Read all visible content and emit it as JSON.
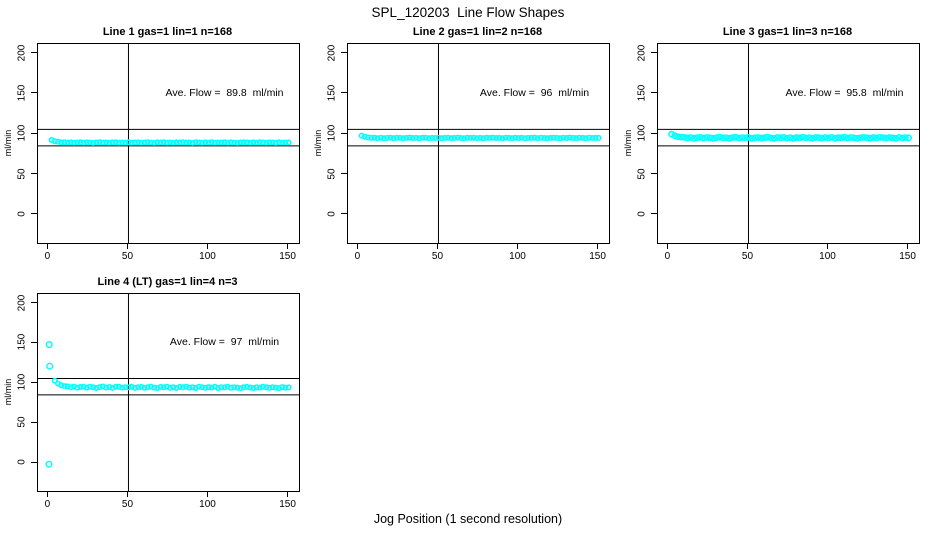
{
  "figure": {
    "title": "SPL_120203  Line Flow Shapes",
    "xlabel": "Jog Position (1 second resolution)",
    "ylabel": "ml/min",
    "background": "#FFFFFF",
    "point_color": "#00FFFF",
    "line_color": "#000000",
    "text_color": "#000000"
  },
  "chart_data": [
    {
      "type": "scatter",
      "title": "Line 1 gas=1 lin=1 n=168",
      "annotation": "Ave. Flow =  89.8  ml/min",
      "ave_flow_ml_min": 89.8,
      "ylabel": "ml/min",
      "x_ticks": [
        0,
        50,
        100,
        150
      ],
      "y_ticks": [
        0,
        50,
        100,
        150,
        200
      ],
      "xlim": [
        -6.5,
        156.5
      ],
      "ylim": [
        -35,
        212
      ],
      "grid": false,
      "legend": "none",
      "vline_x": 50,
      "hlines_y": [
        106,
        85.5
      ],
      "annotation_xy": [
        110,
        150
      ],
      "point_r": 2.2,
      "points": [
        [
          2,
          92.9
        ],
        [
          4,
          91.2
        ],
        [
          6,
          90.6
        ],
        [
          8,
          89.9
        ],
        [
          10,
          90.1
        ],
        [
          12,
          89.6
        ],
        [
          14,
          89.9
        ],
        [
          16,
          89.4
        ],
        [
          18,
          89.8
        ],
        [
          20,
          90.0
        ],
        [
          22,
          89.5
        ],
        [
          24,
          89.9
        ],
        [
          26,
          89.7
        ],
        [
          28,
          89.3
        ],
        [
          30,
          89.8
        ],
        [
          32,
          90.1
        ],
        [
          34,
          89.6
        ],
        [
          36,
          89.8
        ],
        [
          38,
          89.4
        ],
        [
          40,
          89.9
        ],
        [
          42,
          90.0
        ],
        [
          44,
          89.5
        ],
        [
          46,
          89.8
        ],
        [
          48,
          89.6
        ],
        [
          50,
          90.0
        ],
        [
          52,
          89.4
        ],
        [
          54,
          89.7
        ],
        [
          56,
          89.9
        ],
        [
          58,
          89.5
        ],
        [
          60,
          89.8
        ],
        [
          62,
          90.1
        ],
        [
          64,
          89.6
        ],
        [
          66,
          89.3
        ],
        [
          68,
          89.9
        ],
        [
          70,
          89.7
        ],
        [
          72,
          90.0
        ],
        [
          74,
          89.5
        ],
        [
          76,
          89.8
        ],
        [
          78,
          89.4
        ],
        [
          80,
          89.9
        ],
        [
          82,
          89.7
        ],
        [
          84,
          90.1
        ],
        [
          86,
          89.6
        ],
        [
          88,
          89.8
        ],
        [
          90,
          89.3
        ],
        [
          92,
          90.0
        ],
        [
          94,
          89.7
        ],
        [
          96,
          89.5
        ],
        [
          98,
          89.9
        ],
        [
          100,
          89.6
        ],
        [
          102,
          90.0
        ],
        [
          104,
          89.4
        ],
        [
          106,
          89.8
        ],
        [
          108,
          89.7
        ],
        [
          110,
          90.1
        ],
        [
          112,
          89.5
        ],
        [
          114,
          89.9
        ],
        [
          116,
          89.6
        ],
        [
          118,
          89.3
        ],
        [
          120,
          89.8
        ],
        [
          122,
          90.0
        ],
        [
          124,
          89.7
        ],
        [
          126,
          89.4
        ],
        [
          128,
          89.9
        ],
        [
          130,
          89.6
        ],
        [
          132,
          90.1
        ],
        [
          134,
          89.8
        ],
        [
          136,
          89.5
        ],
        [
          138,
          89.9
        ],
        [
          140,
          89.7
        ],
        [
          142,
          89.3
        ],
        [
          144,
          90.0
        ],
        [
          146,
          89.6
        ],
        [
          148,
          89.8
        ],
        [
          150,
          89.7
        ]
      ]
    },
    {
      "type": "scatter",
      "title": "Line 2 gas=1 lin=2 n=168",
      "annotation": "Ave. Flow =  96  ml/min",
      "ave_flow_ml_min": 96,
      "ylabel": "ml/min",
      "x_ticks": [
        0,
        50,
        100,
        150
      ],
      "y_ticks": [
        0,
        50,
        100,
        150,
        200
      ],
      "xlim": [
        -6.5,
        156.5
      ],
      "ylim": [
        -35,
        212
      ],
      "grid": false,
      "legend": "none",
      "vline_x": 50,
      "hlines_y": [
        106,
        85.5
      ],
      "annotation_xy": [
        110,
        150
      ],
      "point_r": 2.2,
      "points": [
        [
          2,
          98.3
        ],
        [
          4,
          96.9
        ],
        [
          6,
          96.1
        ],
        [
          8,
          95.7
        ],
        [
          10,
          95.6
        ],
        [
          12,
          95.2
        ],
        [
          14,
          95.6
        ],
        [
          16,
          95.0
        ],
        [
          18,
          95.5
        ],
        [
          20,
          95.7
        ],
        [
          22,
          95.2
        ],
        [
          24,
          95.6
        ],
        [
          26,
          95.4
        ],
        [
          28,
          95.0
        ],
        [
          30,
          95.5
        ],
        [
          32,
          95.8
        ],
        [
          34,
          95.3
        ],
        [
          36,
          95.5
        ],
        [
          38,
          95.1
        ],
        [
          40,
          95.6
        ],
        [
          42,
          95.7
        ],
        [
          44,
          95.2
        ],
        [
          46,
          95.5
        ],
        [
          48,
          95.3
        ],
        [
          50,
          95.7
        ],
        [
          52,
          95.1
        ],
        [
          54,
          95.4
        ],
        [
          56,
          95.6
        ],
        [
          58,
          95.2
        ],
        [
          60,
          95.5
        ],
        [
          62,
          95.8
        ],
        [
          64,
          95.3
        ],
        [
          66,
          95.0
        ],
        [
          68,
          95.6
        ],
        [
          70,
          95.4
        ],
        [
          72,
          95.7
        ],
        [
          74,
          95.2
        ],
        [
          76,
          95.5
        ],
        [
          78,
          95.1
        ],
        [
          80,
          95.6
        ],
        [
          82,
          95.4
        ],
        [
          84,
          95.8
        ],
        [
          86,
          95.3
        ],
        [
          88,
          95.5
        ],
        [
          90,
          95.0
        ],
        [
          92,
          95.7
        ],
        [
          94,
          95.4
        ],
        [
          96,
          95.2
        ],
        [
          98,
          95.6
        ],
        [
          100,
          95.3
        ],
        [
          102,
          95.7
        ],
        [
          104,
          95.1
        ],
        [
          106,
          95.5
        ],
        [
          108,
          95.4
        ],
        [
          110,
          95.8
        ],
        [
          112,
          95.2
        ],
        [
          114,
          95.6
        ],
        [
          116,
          95.3
        ],
        [
          118,
          95.0
        ],
        [
          120,
          95.5
        ],
        [
          122,
          95.7
        ],
        [
          124,
          95.4
        ],
        [
          126,
          95.1
        ],
        [
          128,
          95.6
        ],
        [
          130,
          95.3
        ],
        [
          132,
          95.8
        ],
        [
          134,
          95.5
        ],
        [
          136,
          95.2
        ],
        [
          138,
          95.6
        ],
        [
          140,
          95.4
        ],
        [
          142,
          95.0
        ],
        [
          144,
          95.7
        ],
        [
          146,
          95.3
        ],
        [
          148,
          95.5
        ],
        [
          150,
          95.4
        ]
      ]
    },
    {
      "type": "scatter",
      "title": "Line 3 gas=1 lin=3 n=168",
      "annotation": "Ave. Flow =  95.8  ml/min",
      "ave_flow_ml_min": 95.8,
      "ylabel": "ml/min",
      "x_ticks": [
        0,
        50,
        100,
        150
      ],
      "y_ticks": [
        0,
        50,
        100,
        150,
        200
      ],
      "xlim": [
        -6.5,
        156.5
      ],
      "ylim": [
        -35,
        212
      ],
      "grid": false,
      "legend": "none",
      "vline_x": 50,
      "hlines_y": [
        106,
        85.5
      ],
      "annotation_xy": [
        110,
        150
      ],
      "point_r": 2.6,
      "points": [
        [
          2,
          100.1
        ],
        [
          4,
          98.2
        ],
        [
          6,
          97.0
        ],
        [
          8,
          96.4
        ],
        [
          10,
          96.1
        ],
        [
          12,
          95.4
        ],
        [
          14,
          96.0
        ],
        [
          16,
          95.0
        ],
        [
          18,
          95.8
        ],
        [
          20,
          96.2
        ],
        [
          22,
          95.3
        ],
        [
          24,
          96.0
        ],
        [
          26,
          95.6
        ],
        [
          28,
          94.9
        ],
        [
          30,
          95.8
        ],
        [
          32,
          96.3
        ],
        [
          34,
          95.4
        ],
        [
          36,
          95.8
        ],
        [
          38,
          95.0
        ],
        [
          40,
          96.0
        ],
        [
          42,
          96.2
        ],
        [
          44,
          95.3
        ],
        [
          46,
          95.8
        ],
        [
          48,
          95.5
        ],
        [
          50,
          96.1
        ],
        [
          52,
          95.0
        ],
        [
          54,
          95.6
        ],
        [
          56,
          95.9
        ],
        [
          58,
          95.2
        ],
        [
          60,
          95.7
        ],
        [
          62,
          96.3
        ],
        [
          64,
          95.4
        ],
        [
          66,
          94.9
        ],
        [
          68,
          96.0
        ],
        [
          70,
          95.6
        ],
        [
          72,
          96.1
        ],
        [
          74,
          95.2
        ],
        [
          76,
          95.8
        ],
        [
          78,
          95.0
        ],
        [
          80,
          96.0
        ],
        [
          82,
          95.6
        ],
        [
          84,
          96.3
        ],
        [
          86,
          95.4
        ],
        [
          88,
          95.8
        ],
        [
          90,
          94.9
        ],
        [
          92,
          96.1
        ],
        [
          94,
          95.7
        ],
        [
          96,
          95.2
        ],
        [
          98,
          95.9
        ],
        [
          100,
          95.5
        ],
        [
          102,
          96.1
        ],
        [
          104,
          95.0
        ],
        [
          106,
          95.8
        ],
        [
          108,
          95.6
        ],
        [
          110,
          96.3
        ],
        [
          112,
          95.3
        ],
        [
          114,
          95.9
        ],
        [
          116,
          95.5
        ],
        [
          118,
          94.9
        ],
        [
          120,
          95.8
        ],
        [
          122,
          96.1
        ],
        [
          124,
          95.6
        ],
        [
          126,
          95.1
        ],
        [
          128,
          95.9
        ],
        [
          130,
          95.4
        ],
        [
          132,
          96.2
        ],
        [
          134,
          95.8
        ],
        [
          136,
          95.3
        ],
        [
          138,
          95.9
        ],
        [
          140,
          95.6
        ],
        [
          142,
          95.0
        ],
        [
          144,
          96.1
        ],
        [
          146,
          95.5
        ],
        [
          148,
          95.8
        ],
        [
          150,
          95.6
        ]
      ]
    },
    {
      "type": "scatter",
      "title": "Line 4 (LT) gas=1 lin=4 n=3",
      "annotation": "Ave. Flow =  97  ml/min",
      "ave_flow_ml_min": 97,
      "ylabel": "ml/min",
      "x_ticks": [
        0,
        50,
        100,
        150
      ],
      "y_ticks": [
        0,
        50,
        100,
        150,
        200
      ],
      "xlim": [
        -6.5,
        156.5
      ],
      "ylim": [
        -35,
        212
      ],
      "grid": false,
      "legend": "none",
      "vline_x": 50,
      "hlines_y": [
        106,
        85.5
      ],
      "annotation_xy": [
        110,
        150
      ],
      "point_r": 2.2,
      "outliers": [
        [
          0.5,
          148.5
        ],
        [
          0.8,
          121.5
        ],
        [
          0.4,
          -1.5
        ]
      ],
      "points": [
        [
          4,
          103.2
        ],
        [
          6,
          99.8
        ],
        [
          8,
          97.6
        ],
        [
          10,
          96.5
        ],
        [
          12,
          96.2
        ],
        [
          14,
          95.1
        ],
        [
          16,
          95.9
        ],
        [
          18,
          94.6
        ],
        [
          20,
          95.4
        ],
        [
          22,
          95.9
        ],
        [
          24,
          94.7
        ],
        [
          26,
          95.6
        ],
        [
          28,
          95.1
        ],
        [
          30,
          94.2
        ],
        [
          32,
          95.3
        ],
        [
          34,
          96.0
        ],
        [
          36,
          94.8
        ],
        [
          38,
          95.4
        ],
        [
          40,
          94.3
        ],
        [
          42,
          95.6
        ],
        [
          44,
          95.8
        ],
        [
          46,
          94.6
        ],
        [
          48,
          95.2
        ],
        [
          50,
          94.9
        ],
        [
          52,
          95.7
        ],
        [
          54,
          94.3
        ],
        [
          56,
          95.0
        ],
        [
          58,
          95.5
        ],
        [
          60,
          94.5
        ],
        [
          62,
          95.2
        ],
        [
          64,
          95.9
        ],
        [
          66,
          94.7
        ],
        [
          68,
          94.1
        ],
        [
          70,
          95.4
        ],
        [
          72,
          95.0
        ],
        [
          74,
          95.7
        ],
        [
          76,
          94.4
        ],
        [
          78,
          95.2
        ],
        [
          80,
          94.2
        ],
        [
          82,
          95.5
        ],
        [
          84,
          95.0
        ],
        [
          86,
          95.8
        ],
        [
          88,
          94.6
        ],
        [
          90,
          95.2
        ],
        [
          92,
          94.1
        ],
        [
          94,
          95.6
        ],
        [
          96,
          95.1
        ],
        [
          98,
          94.5
        ],
        [
          100,
          95.3
        ],
        [
          102,
          94.8
        ],
        [
          104,
          95.6
        ],
        [
          106,
          94.2
        ],
        [
          108,
          95.1
        ],
        [
          110,
          94.9
        ],
        [
          112,
          95.7
        ],
        [
          114,
          94.4
        ],
        [
          116,
          95.2
        ],
        [
          118,
          94.7
        ],
        [
          120,
          94.0
        ],
        [
          122,
          95.0
        ],
        [
          124,
          95.5
        ],
        [
          126,
          94.8
        ],
        [
          128,
          94.2
        ],
        [
          130,
          95.2
        ],
        [
          132,
          94.6
        ],
        [
          134,
          95.6
        ],
        [
          136,
          95.0
        ],
        [
          138,
          94.4
        ],
        [
          140,
          95.1
        ],
        [
          142,
          94.7
        ],
        [
          144,
          94.0
        ],
        [
          146,
          95.3
        ],
        [
          148,
          94.6
        ],
        [
          150,
          94.9
        ]
      ]
    }
  ]
}
